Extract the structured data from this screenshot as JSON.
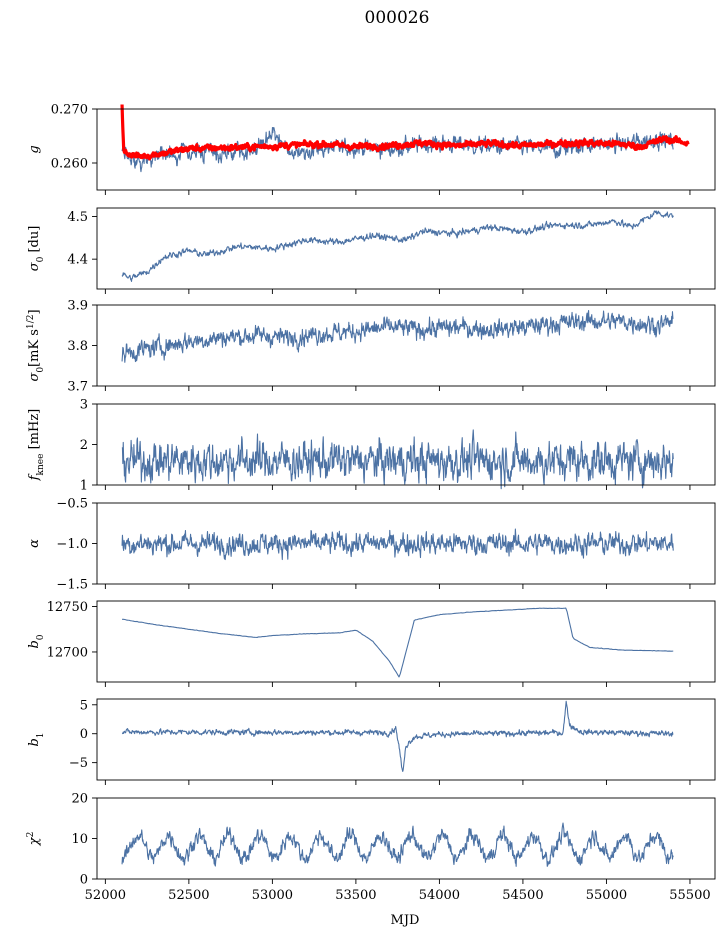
{
  "figure": {
    "title": "000026",
    "xlabel": "MJD"
  },
  "chart_data": [
    {
      "type": "line",
      "ylabel": "g",
      "ylabel_html": "<i>g</i>",
      "xlim": [
        51950,
        55650
      ],
      "ylim": [
        0.255,
        0.27
      ],
      "yticks": [
        0.26,
        0.27
      ],
      "ytick_labels": [
        "0.260",
        "0.270"
      ],
      "series": [
        {
          "color": "#4c72a4",
          "x_start": 52100,
          "x_end": 55400,
          "style": "noise",
          "anchors": [
            [
              52100,
              0.262
            ],
            [
              52200,
              0.2605
            ],
            [
              52300,
              0.2615
            ],
            [
              52500,
              0.262
            ],
            [
              52700,
              0.2615
            ],
            [
              52900,
              0.2625
            ],
            [
              53000,
              0.2655
            ],
            [
              53100,
              0.262
            ],
            [
              53300,
              0.2625
            ],
            [
              53500,
              0.263
            ],
            [
              53700,
              0.2625
            ],
            [
              53900,
              0.2635
            ],
            [
              54100,
              0.2635
            ],
            [
              54300,
              0.263
            ],
            [
              54500,
              0.263
            ],
            [
              54700,
              0.2625
            ],
            [
              54900,
              0.2635
            ],
            [
              55100,
              0.2635
            ],
            [
              55300,
              0.2645
            ],
            [
              55400,
              0.264
            ]
          ],
          "noise": 0.0008
        },
        {
          "color": "#ff0000",
          "x_start": 52100,
          "x_end": 55490,
          "style": "thick",
          "anchors": [
            [
              52100,
              0.2705
            ],
            [
              52110,
              0.262
            ],
            [
              52200,
              0.2612
            ],
            [
              52350,
              0.2618
            ],
            [
              52500,
              0.2627
            ],
            [
              52700,
              0.2628
            ],
            [
              52900,
              0.263
            ],
            [
              53100,
              0.2633
            ],
            [
              53300,
              0.2635
            ],
            [
              53500,
              0.263
            ],
            [
              53700,
              0.2632
            ],
            [
              53900,
              0.2637
            ],
            [
              54100,
              0.2632
            ],
            [
              54300,
              0.2636
            ],
            [
              54500,
              0.2632
            ],
            [
              54700,
              0.2636
            ],
            [
              54900,
              0.2637
            ],
            [
              55100,
              0.2635
            ],
            [
              55200,
              0.263
            ],
            [
              55350,
              0.2645
            ],
            [
              55490,
              0.2637
            ]
          ],
          "noise": 0.0003
        }
      ]
    },
    {
      "type": "line",
      "ylabel": "σ0 [du]",
      "ylabel_html": "<i>σ</i><sub>0</sub> [du]",
      "xlim": [
        51950,
        55650
      ],
      "ylim": [
        4.33,
        4.52
      ],
      "yticks": [
        4.4,
        4.5
      ],
      "ytick_labels": [
        "4.4",
        "4.5"
      ],
      "series": [
        {
          "color": "#4c72a4",
          "x_start": 52100,
          "x_end": 55400,
          "style": "noise",
          "anchors": [
            [
              52100,
              4.365
            ],
            [
              52150,
              4.355
            ],
            [
              52250,
              4.37
            ],
            [
              52350,
              4.405
            ],
            [
              52500,
              4.42
            ],
            [
              52600,
              4.41
            ],
            [
              52800,
              4.43
            ],
            [
              53000,
              4.425
            ],
            [
              53200,
              4.445
            ],
            [
              53400,
              4.44
            ],
            [
              53600,
              4.455
            ],
            [
              53800,
              4.445
            ],
            [
              53900,
              4.465
            ],
            [
              54100,
              4.46
            ],
            [
              54300,
              4.475
            ],
            [
              54500,
              4.465
            ],
            [
              54700,
              4.48
            ],
            [
              54900,
              4.48
            ],
            [
              55050,
              4.49
            ],
            [
              55150,
              4.475
            ],
            [
              55300,
              4.51
            ],
            [
              55400,
              4.5
            ]
          ],
          "noise": 0.004
        }
      ]
    },
    {
      "type": "line",
      "ylabel": "σ0[mK s^1/2]",
      "ylabel_html": "<i>σ</i><sub>0</sub>[mK s<sup>1/2</sup>]",
      "xlim": [
        51950,
        55650
      ],
      "ylim": [
        3.7,
        3.9
      ],
      "yticks": [
        3.7,
        3.8,
        3.9
      ],
      "ytick_labels": [
        "3.7",
        "3.8",
        "3.9"
      ],
      "series": [
        {
          "color": "#4c72a4",
          "x_start": 52100,
          "x_end": 55400,
          "style": "noise",
          "anchors": [
            [
              52100,
              3.78
            ],
            [
              52300,
              3.795
            ],
            [
              52500,
              3.81
            ],
            [
              52700,
              3.82
            ],
            [
              52900,
              3.825
            ],
            [
              53100,
              3.82
            ],
            [
              53300,
              3.83
            ],
            [
              53500,
              3.835
            ],
            [
              53700,
              3.845
            ],
            [
              53900,
              3.84
            ],
            [
              54100,
              3.845
            ],
            [
              54300,
              3.84
            ],
            [
              54500,
              3.845
            ],
            [
              54700,
              3.855
            ],
            [
              54900,
              3.86
            ],
            [
              55100,
              3.86
            ],
            [
              55300,
              3.85
            ],
            [
              55400,
              3.86
            ]
          ],
          "noise": 0.012
        }
      ]
    },
    {
      "type": "line",
      "ylabel": "fknee [mHz]",
      "ylabel_html": "<i>f</i><sub>knee</sub> [mHz]",
      "xlim": [
        51950,
        55650
      ],
      "ylim": [
        1,
        3
      ],
      "yticks": [
        1,
        2,
        3
      ],
      "ytick_labels": [
        "1",
        "2",
        "3"
      ],
      "series": [
        {
          "color": "#4c72a4",
          "x_start": 52100,
          "x_end": 55400,
          "style": "noise",
          "anchors": [
            [
              52100,
              1.6
            ],
            [
              55400,
              1.6
            ]
          ],
          "noise": 0.25
        }
      ]
    },
    {
      "type": "line",
      "ylabel": "α",
      "ylabel_html": "<i>α</i>",
      "xlim": [
        51950,
        55650
      ],
      "ylim": [
        -1.5,
        -0.5
      ],
      "yticks": [
        -1.5,
        -1.0,
        -0.5
      ],
      "ytick_labels": [
        "−1.5",
        "−1.0",
        "−0.5"
      ],
      "series": [
        {
          "color": "#4c72a4",
          "x_start": 52100,
          "x_end": 55400,
          "style": "noise",
          "anchors": [
            [
              52100,
              -1.0
            ],
            [
              55400,
              -1.0
            ]
          ],
          "noise": 0.07
        }
      ]
    },
    {
      "type": "line",
      "ylabel": "b0",
      "ylabel_html": "<i>b</i><sub>0</sub>",
      "xlim": [
        51950,
        55650
      ],
      "ylim": [
        12667,
        12756
      ],
      "yticks": [
        12700,
        12750
      ],
      "ytick_labels": [
        "12700",
        "12750"
      ],
      "series": [
        {
          "color": "#4c72a4",
          "x_start": 52100,
          "x_end": 55400,
          "style": "smooth",
          "anchors": [
            [
              52100,
              12736
            ],
            [
              52300,
              12730
            ],
            [
              52500,
              12725
            ],
            [
              52700,
              12720
            ],
            [
              52900,
              12716
            ],
            [
              53000,
              12718
            ],
            [
              53200,
              12720
            ],
            [
              53400,
              12721
            ],
            [
              53500,
              12724
            ],
            [
              53600,
              12712
            ],
            [
              53700,
              12690
            ],
            [
              53760,
              12672
            ],
            [
              53800,
              12700
            ],
            [
              53850,
              12735
            ],
            [
              54000,
              12741
            ],
            [
              54200,
              12744
            ],
            [
              54400,
              12746
            ],
            [
              54600,
              12748
            ],
            [
              54760,
              12748
            ],
            [
              54800,
              12715
            ],
            [
              54900,
              12705
            ],
            [
              55100,
              12702
            ],
            [
              55400,
              12701
            ]
          ],
          "noise": 0.4
        }
      ]
    },
    {
      "type": "line",
      "ylabel": "b1",
      "ylabel_html": "<i>b</i><sub>1</sub>",
      "xlim": [
        51950,
        55650
      ],
      "ylim": [
        -8,
        6
      ],
      "yticks": [
        -5,
        0,
        5
      ],
      "ytick_labels": [
        "−5",
        "0",
        "5"
      ],
      "series": [
        {
          "color": "#4c72a4",
          "x_start": 52100,
          "x_end": 55400,
          "style": "noise",
          "anchors": [
            [
              52100,
              0.3
            ],
            [
              53700,
              0.2
            ],
            [
              53740,
              1.0
            ],
            [
              53760,
              -2.5
            ],
            [
              53780,
              -7.0
            ],
            [
              53800,
              -2.0
            ],
            [
              53850,
              -0.5
            ],
            [
              54000,
              -0.1
            ],
            [
              54740,
              0.2
            ],
            [
              54760,
              5.5
            ],
            [
              54780,
              1.5
            ],
            [
              54850,
              0.3
            ],
            [
              55400,
              0.0
            ]
          ],
          "noise": 0.25
        }
      ]
    },
    {
      "type": "line",
      "ylabel": "χ2",
      "ylabel_html": "<i>χ</i><sup>2</sup>",
      "xlim": [
        51950,
        55650
      ],
      "ylim": [
        0,
        20
      ],
      "yticks": [
        0,
        10,
        20
      ],
      "ytick_labels": [
        "0",
        "10",
        "20"
      ],
      "series": [
        {
          "color": "#4c72a4",
          "x_start": 52100,
          "x_end": 55400,
          "style": "periodic",
          "anchors": [
            [
              52100,
              8
            ],
            [
              55400,
              8
            ]
          ],
          "period": 182,
          "amplitude": 2.8,
          "noise": 1.0
        }
      ]
    }
  ],
  "shared_x": {
    "ticks": [
      52000,
      52500,
      53000,
      53500,
      54000,
      54500,
      55000,
      55500
    ],
    "tick_labels": [
      "52000",
      "52500",
      "53000",
      "53500",
      "54000",
      "54500",
      "55000",
      "55500"
    ]
  }
}
